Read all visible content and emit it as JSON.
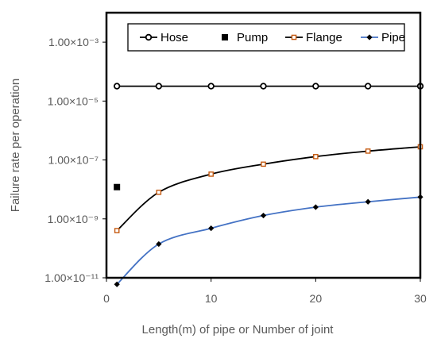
{
  "chart_data": {
    "type": "line",
    "xlabel": "Length(m) of pipe or Number of joint",
    "ylabel": "Failure rate per operation",
    "xlim": [
      0,
      30
    ],
    "ylim": [
      1e-11,
      0.01
    ],
    "y_scale": "log",
    "x_ticks": [
      0,
      10,
      20,
      30
    ],
    "x_tick_labels": [
      "0",
      "10",
      "20",
      "30"
    ],
    "y_ticks": [
      1e-11,
      1e-09,
      1e-07,
      1e-05,
      0.001
    ],
    "y_tick_labels": [
      "1.00×10⁻¹¹",
      "1.00×10⁻⁹",
      "1.00×10⁻⁷",
      "1.00×10⁻⁵",
      "1.00×10⁻³"
    ],
    "grid": false,
    "legend_position": "top",
    "series": [
      {
        "name": "Hose",
        "marker": "circle",
        "color": "#000000",
        "x": [
          1,
          5,
          10,
          15,
          20,
          25,
          30
        ],
        "y": [
          3.2e-05,
          3.2e-05,
          3.2e-05,
          3.2e-05,
          3.2e-05,
          3.2e-05,
          3.2e-05
        ]
      },
      {
        "name": "Pump",
        "marker": "square",
        "color": "#000000",
        "x": [
          1
        ],
        "y": [
          1.2e-08
        ]
      },
      {
        "name": "Flange",
        "marker": "square-open",
        "color": "#000000",
        "marker_color": "#c55a11",
        "x": [
          1,
          5,
          10,
          15,
          20,
          25,
          30
        ],
        "y": [
          4e-10,
          8e-09,
          3.3e-08,
          7.2e-08,
          1.3e-07,
          2e-07,
          2.8e-07
        ]
      },
      {
        "name": "Pipe",
        "marker": "diamond",
        "color": "#4472c4",
        "marker_color": "#000000",
        "x": [
          1,
          5,
          10,
          15,
          20,
          25,
          30
        ],
        "y": [
          6e-12,
          1.4e-10,
          4.8e-10,
          1.3e-09,
          2.5e-09,
          3.8e-09,
          5.5e-09
        ]
      }
    ]
  }
}
